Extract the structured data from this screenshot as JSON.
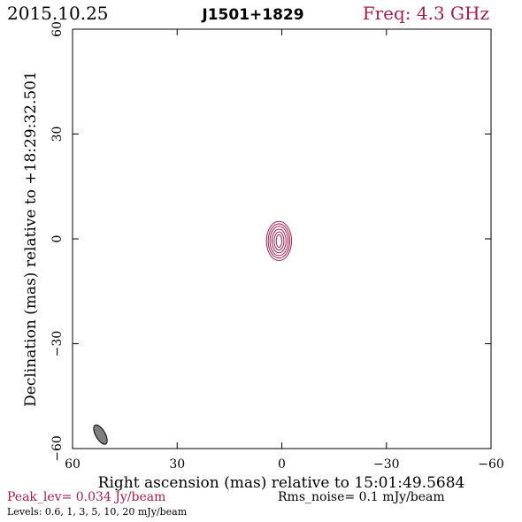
{
  "header": {
    "date": "2015.10.25",
    "source": "J1501+1829",
    "freq": "Freq: 4.3 GHz"
  },
  "footer": {
    "peak": "Peak_lev=  0.034 Jy/beam",
    "rms": "Rms_noise=   0.1 mJy/beam",
    "levels": "Levels: 0.6,    1,    3,    5,   10,   20 mJy/beam"
  },
  "colors": {
    "accent": "#a0204a",
    "axis": "#000000",
    "beam_fill": "#7f7f7f"
  },
  "chart_data": {
    "type": "contour",
    "xlabel": "Right ascension (mas) relative to 15:01:49.5684",
    "ylabel": "Declination (mas) relative to +18:29:32.501",
    "xlim": [
      60,
      -60
    ],
    "ylim": [
      -60,
      60
    ],
    "xticks": [
      60,
      30,
      0,
      -30,
      -60
    ],
    "yticks": [
      -60,
      -30,
      0,
      30,
      60
    ],
    "xtick_labels": [
      "60",
      "30",
      "0",
      "−30",
      "−60"
    ],
    "ytick_labels": [
      "−60",
      "−30",
      "0",
      "30",
      "60"
    ],
    "contour_levels_mJy_per_beam": [
      0.6,
      1,
      3,
      5,
      10,
      20
    ],
    "contour_center": [
      0.8,
      -0.6
    ],
    "contour_pa_deg": 36,
    "contour_semi_axes_mas": [
      [
        5.6,
        3.6
      ],
      [
        4.9,
        3.1
      ],
      [
        4.2,
        2.6
      ],
      [
        3.4,
        2.0
      ],
      [
        2.6,
        1.4
      ],
      [
        1.8,
        0.8
      ]
    ],
    "beam": {
      "center": [
        52,
        -56
      ],
      "major_mas": 6.2,
      "minor_mas": 2.7,
      "pa_deg": 30
    }
  }
}
